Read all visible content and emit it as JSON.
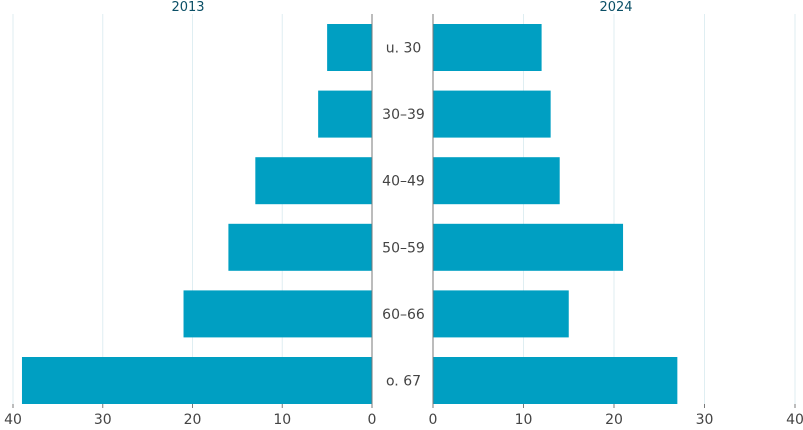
{
  "chart_data": {
    "type": "bar",
    "orientation": "horizontal-butterfly",
    "categories": [
      "u. 30",
      "30–39",
      "40–49",
      "50–59",
      "60–66",
      "o. 67"
    ],
    "series": [
      {
        "name": "2013",
        "values": [
          5,
          6,
          13,
          16,
          21,
          39
        ]
      },
      {
        "name": "2024",
        "values": [
          12,
          13,
          14,
          21,
          15,
          27
        ]
      }
    ],
    "xlim": [
      0,
      40
    ],
    "ticks": [
      "40",
      "30",
      "20",
      "10",
      "0",
      "0",
      "10",
      "20",
      "30",
      "40"
    ],
    "grid": true,
    "bar_color": "#009fc2"
  }
}
